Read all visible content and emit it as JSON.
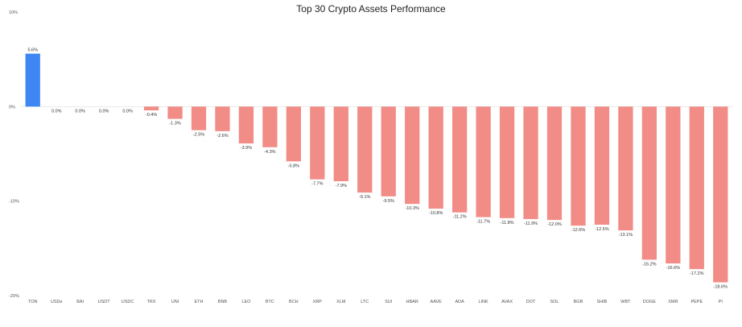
{
  "chart_data": {
    "type": "bar",
    "title": "Top 30 Crypto Assets Performance",
    "xlabel": "",
    "ylabel": "",
    "ylim": [
      -20,
      10
    ],
    "yticks": [
      "10%",
      "0%",
      "-10%",
      "-20%"
    ],
    "grid": false,
    "categories": [
      "TON",
      "USDe",
      "BAI",
      "USDT",
      "USDC",
      "TRX",
      "UNI",
      "ETH",
      "BNB",
      "LEO",
      "BTC",
      "BCH",
      "XRP",
      "XLM",
      "LTC",
      "SUI",
      "HBAR",
      "AAVE",
      "ADA",
      "LINK",
      "AVAX",
      "DOT",
      "SOL",
      "BGB",
      "SHIB",
      "WBT",
      "DOGE",
      "XMR",
      "PEPE",
      "PI"
    ],
    "values": [
      5.6,
      0.0,
      0.0,
      0.0,
      0.0,
      -0.4,
      -1.3,
      -2.5,
      -2.6,
      -3.9,
      -4.3,
      -5.8,
      -7.7,
      -7.9,
      -9.1,
      -9.5,
      -10.3,
      -10.8,
      -11.2,
      -11.7,
      -11.8,
      -11.9,
      -12.0,
      -12.6,
      -12.5,
      -13.1,
      -16.2,
      -16.6,
      -17.2,
      -18.6
    ],
    "data_labels": [
      "5.6%",
      "0.0%",
      "0.0%",
      "0.0%",
      "0.0%",
      "-0.4%",
      "-1.3%",
      "-2.5%",
      "-2.6%",
      "-3.9%",
      "-4.3%",
      "-5.8%",
      "-7.7%",
      "-7.9%",
      "-9.1%",
      "-9.5%",
      "-10.3%",
      "-10.8%",
      "-11.2%",
      "-11.7%",
      "-11.8%",
      "-11.9%",
      "-12.0%",
      "-12.6%",
      "-12.5%",
      "-13.1%",
      "-16.2%",
      "-16.6%",
      "-17.2%",
      "-18.6%"
    ],
    "colors": {
      "positive": "#3d86f3",
      "negative": "#f28c87",
      "axis": "#dddddd"
    }
  }
}
